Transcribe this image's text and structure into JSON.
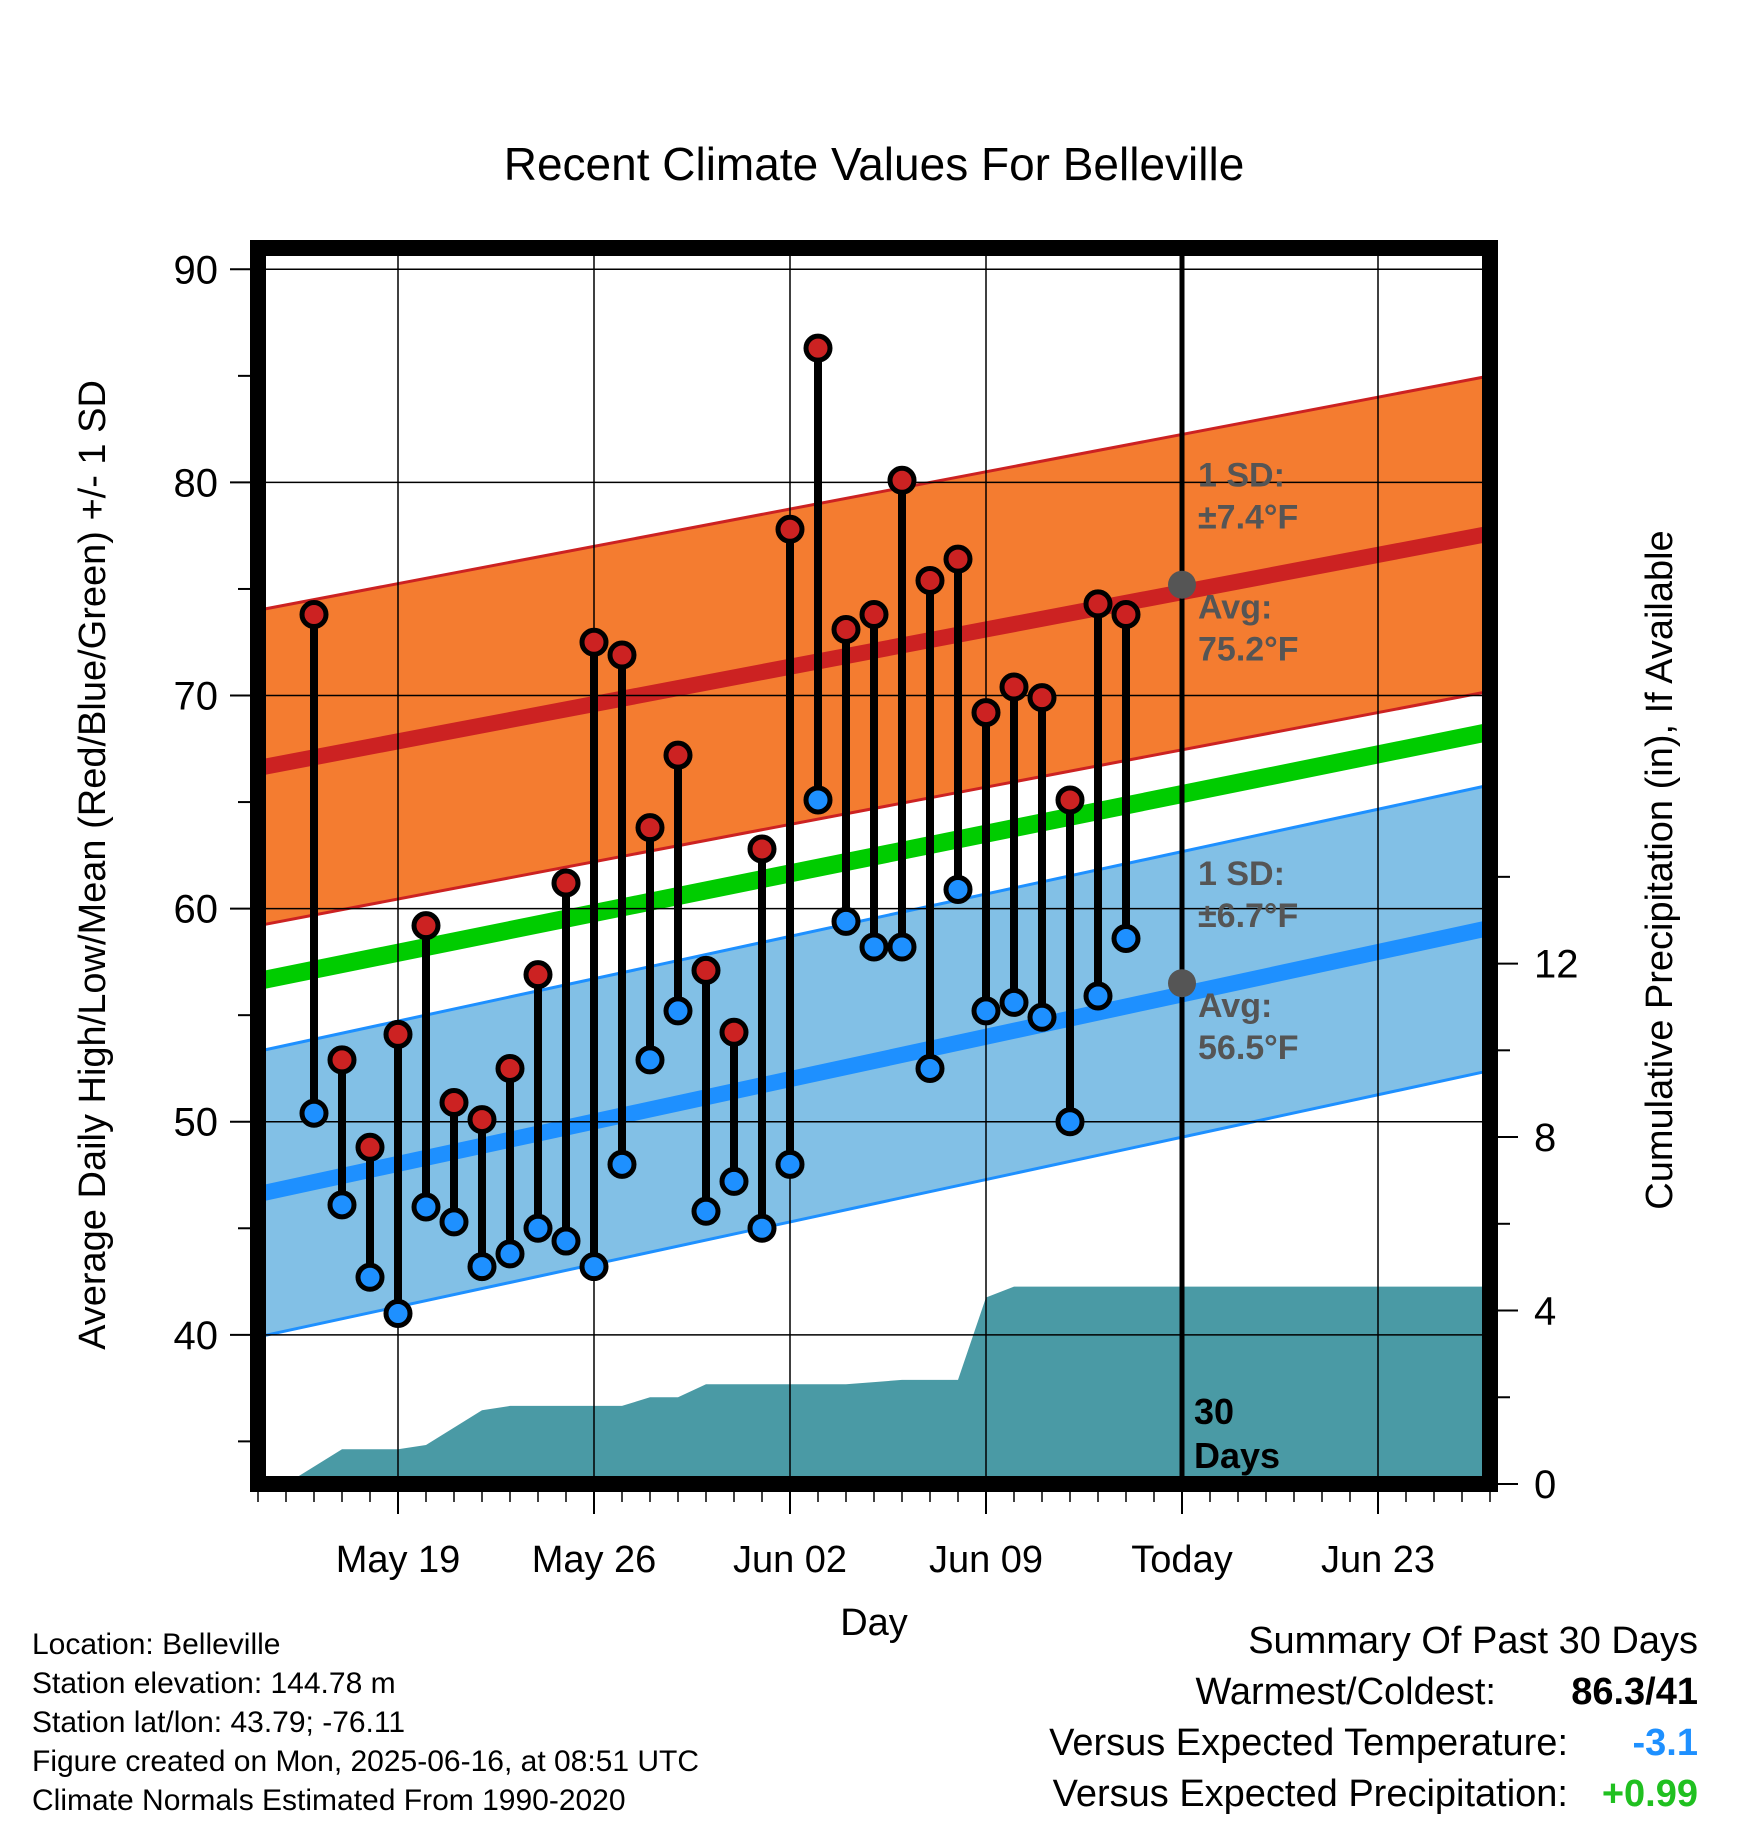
{
  "chart_data": {
    "type": "line",
    "title": "Recent Climate Values For Belleville",
    "xlabel": "Day",
    "ylabel": "Average Daily High/Low/Mean (Red/Blue/Green) +/- 1 SD",
    "y2label": "Cumulative Precipitation (in), If Available",
    "ylim": [
      33,
      91
    ],
    "y2lim": [
      0,
      28.5
    ],
    "yticks": [
      40,
      50,
      60,
      70,
      80,
      90
    ],
    "y2ticks": [
      0,
      4,
      8,
      12
    ],
    "xlim": [
      "2025-05-14",
      "2025-06-27"
    ],
    "xticks": [
      {
        "date": "2025-05-19",
        "label": "May 19"
      },
      {
        "date": "2025-05-26",
        "label": "May 26"
      },
      {
        "date": "2025-06-02",
        "label": "Jun 02"
      },
      {
        "date": "2025-06-09",
        "label": "Jun 09"
      },
      {
        "date": "2025-06-16",
        "label": "Today"
      },
      {
        "date": "2025-06-23",
        "label": "Jun 23"
      }
    ],
    "grid": true,
    "today": "2025-06-16",
    "window_label": [
      "30",
      "Days"
    ],
    "observed": {
      "dates": [
        "2025-05-16",
        "2025-05-17",
        "2025-05-18",
        "2025-05-19",
        "2025-05-20",
        "2025-05-21",
        "2025-05-22",
        "2025-05-23",
        "2025-05-24",
        "2025-05-25",
        "2025-05-26",
        "2025-05-27",
        "2025-05-28",
        "2025-05-29",
        "2025-05-30",
        "2025-05-31",
        "2025-06-01",
        "2025-06-02",
        "2025-06-03",
        "2025-06-04",
        "2025-06-05",
        "2025-06-06",
        "2025-06-07",
        "2025-06-08",
        "2025-06-09",
        "2025-06-10",
        "2025-06-11",
        "2025-06-12",
        "2025-06-13",
        "2025-06-14",
        "2025-06-15"
      ],
      "high": [
        73.8,
        52.9,
        48.8,
        54.1,
        59.2,
        50.9,
        50.1,
        52.5,
        56.9,
        61.2,
        72.5,
        71.9,
        63.8,
        67.2,
        57.1,
        54.2,
        62.8,
        77.8,
        86.3,
        73.1,
        73.8,
        80.1,
        75.4,
        76.4,
        69.2,
        70.4,
        69.9,
        65.1,
        74.3,
        73.8,
        null
      ],
      "low": [
        50.4,
        46.1,
        42.7,
        41.0,
        46.0,
        45.3,
        43.2,
        43.8,
        45.0,
        44.4,
        43.2,
        48.0,
        52.9,
        55.2,
        45.8,
        47.2,
        45.0,
        48.0,
        65.1,
        59.4,
        58.2,
        58.2,
        52.5,
        60.9,
        55.2,
        55.6,
        54.9,
        50.0,
        55.9,
        58.6,
        null
      ]
    },
    "normals": {
      "dates": [
        "2025-05-14",
        "2025-06-27"
      ],
      "avg_high": [
        66.6,
        77.6
      ],
      "avg_high_sd": 7.4,
      "avg_low": [
        46.6,
        59.1
      ],
      "avg_low_sd": 6.7,
      "avg_mean": [
        56.6,
        68.3
      ]
    },
    "today_markers": {
      "high": 75.2,
      "low": 56.5,
      "high_sd_text": "1 SD:",
      "high_sd_value": "±7.4°F",
      "high_avg_text": "Avg:",
      "high_avg_value": "75.2°F",
      "low_sd_text": "1 SD:",
      "low_sd_value": "±6.7°F",
      "low_avg_text": "Avg:",
      "low_avg_value": "56.5°F"
    },
    "precipitation": {
      "dates": [
        "2025-05-14",
        "2025-05-15",
        "2025-05-16",
        "2025-05-17",
        "2025-05-18",
        "2025-05-19",
        "2025-05-20",
        "2025-05-21",
        "2025-05-22",
        "2025-05-23",
        "2025-05-24",
        "2025-05-25",
        "2025-05-26",
        "2025-05-27",
        "2025-05-28",
        "2025-05-29",
        "2025-05-30",
        "2025-05-31",
        "2025-06-01",
        "2025-06-02",
        "2025-06-03",
        "2025-06-04",
        "2025-06-05",
        "2025-06-06",
        "2025-06-07",
        "2025-06-08",
        "2025-06-09",
        "2025-06-10",
        "2025-06-11",
        "2025-06-27"
      ],
      "cumulative": [
        0.0,
        0.0,
        0.4,
        0.8,
        0.8,
        0.8,
        0.9,
        1.3,
        1.7,
        1.8,
        1.8,
        1.8,
        1.8,
        1.8,
        2.0,
        2.0,
        2.3,
        2.3,
        2.3,
        2.3,
        2.3,
        2.3,
        2.35,
        2.4,
        2.4,
        2.4,
        4.3,
        4.55,
        4.55,
        4.55
      ]
    }
  },
  "info": {
    "location": "Location: Belleville",
    "elevation": "Station elevation: 144.78 m",
    "latlon": "Station lat/lon: 43.79; -76.11",
    "created": "Figure created on Mon, 2025-06-16, at 08:51 UTC",
    "normals": "Climate Normals Estimated From 1990-2020"
  },
  "summary": {
    "title": "Summary Of Past 30 Days",
    "warm_label": "Warmest/Coldest:",
    "warm_value": "86.3/41",
    "temp_label": "Versus Expected Temperature:",
    "temp_value": "-3.1",
    "temp_color": "#1e90ff",
    "precip_label": "Versus Expected Precipitation:",
    "precip_value": "+0.99",
    "precip_color": "#20c020"
  },
  "colors": {
    "high_band": "#f47c30",
    "high_line": "#cc2222",
    "low_band": "#82c0e6",
    "low_line": "#1e90ff",
    "mean_line": "#00cc00",
    "precip": "#4a9aa5",
    "high_dot": "#cc2222",
    "low_dot": "#1e90ff",
    "marker": "#555555"
  }
}
